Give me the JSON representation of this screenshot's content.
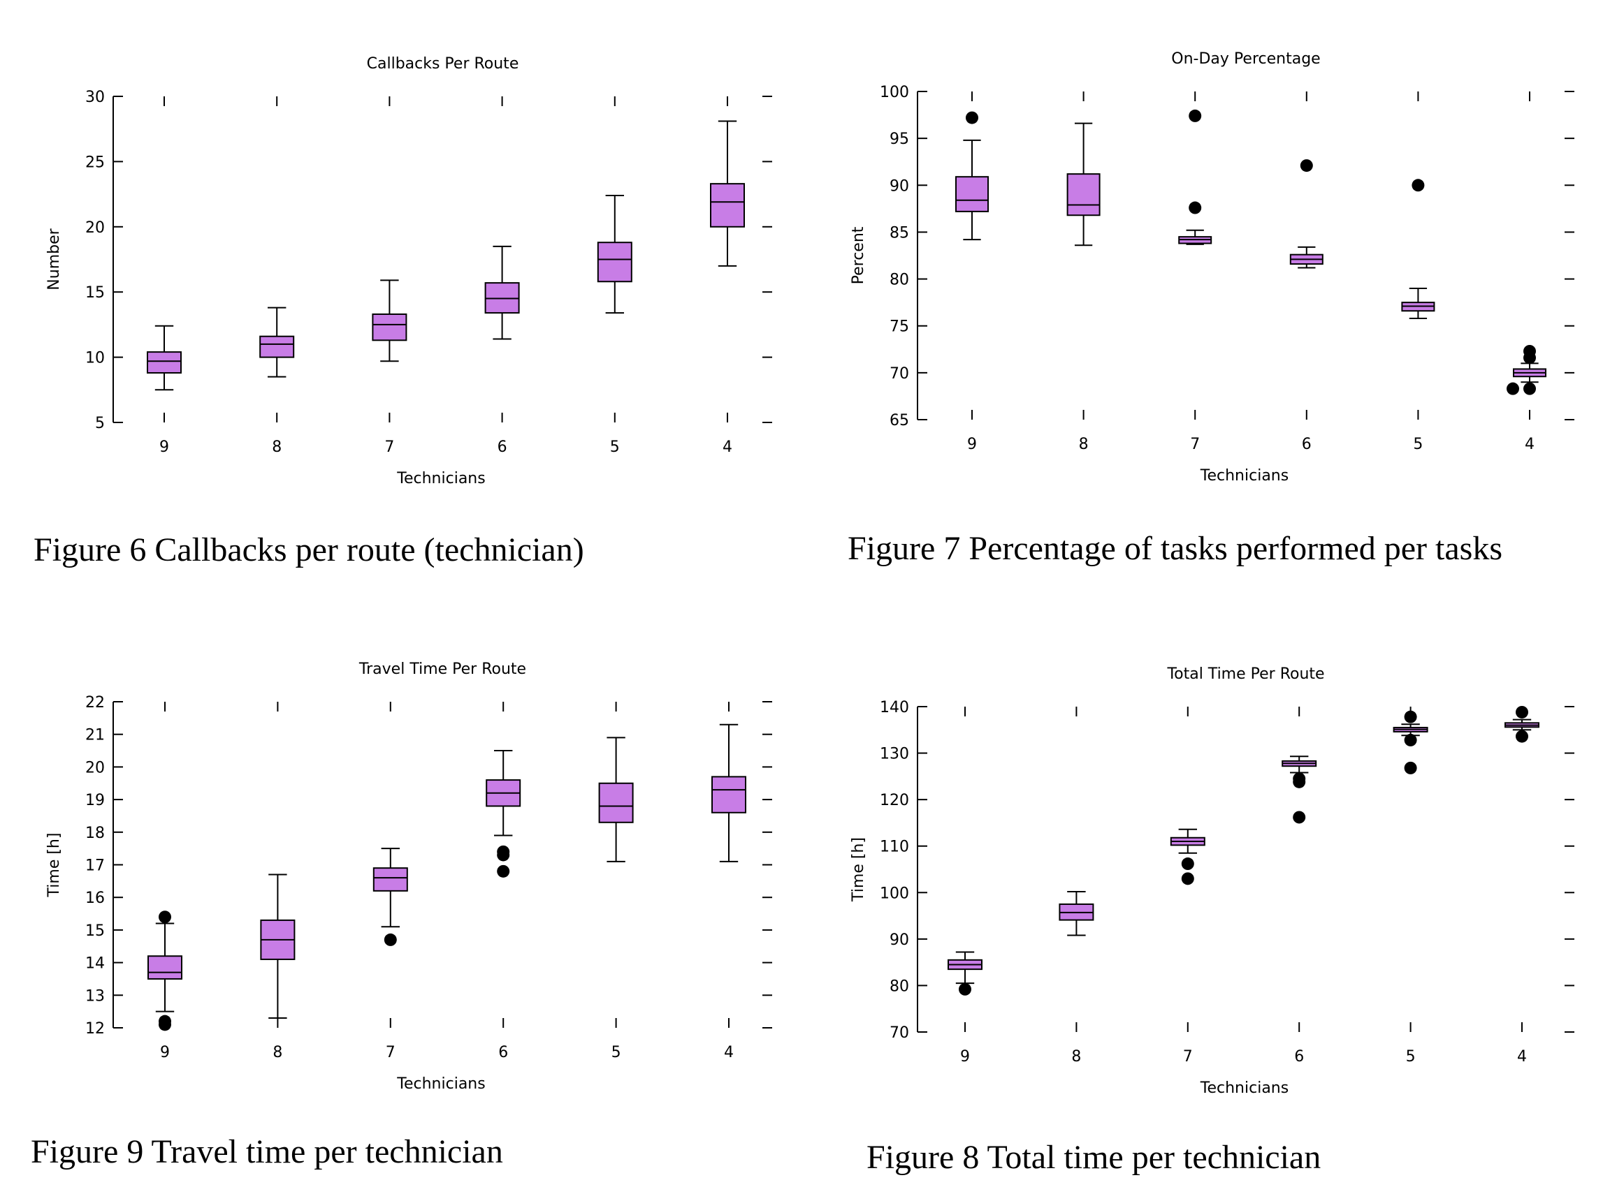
{
  "captions": {
    "fig6": "Figure 6 Callbacks per route (technician)",
    "fig7": "Figure 7 Percentage of tasks performed per tasks",
    "fig8": "Figure 8 Total time per technician",
    "fig9": "Figure 9 Travel time per technician"
  },
  "colors": {
    "box_fill": "#c87de6",
    "stroke": "#000000",
    "outlier": "#000000"
  },
  "chart_data": [
    {
      "type": "boxplot",
      "title": "Callbacks Per Route",
      "xlabel": "Technicians",
      "ylabel": "Number",
      "categories": [
        "9",
        "8",
        "7",
        "6",
        "5",
        "4"
      ],
      "ylim": [
        5,
        30
      ],
      "yticks": [
        5,
        10,
        15,
        20,
        25,
        30
      ],
      "boxes": [
        {
          "min": 7.5,
          "q1": 8.8,
          "median": 9.7,
          "q3": 10.4,
          "max": 12.4,
          "outliers": []
        },
        {
          "min": 8.5,
          "q1": 10.0,
          "median": 11.0,
          "q3": 11.6,
          "max": 13.8,
          "outliers": []
        },
        {
          "min": 9.7,
          "q1": 11.3,
          "median": 12.5,
          "q3": 13.3,
          "max": 15.9,
          "outliers": []
        },
        {
          "min": 11.4,
          "q1": 13.4,
          "median": 14.5,
          "q3": 15.7,
          "max": 18.5,
          "outliers": []
        },
        {
          "min": 13.4,
          "q1": 15.8,
          "median": 17.5,
          "q3": 18.8,
          "max": 22.4,
          "outliers": []
        },
        {
          "min": 17.0,
          "q1": 20.0,
          "median": 21.9,
          "q3": 23.3,
          "max": 28.1,
          "outliers": []
        }
      ]
    },
    {
      "type": "boxplot",
      "title": "On-Day Percentage",
      "xlabel": "Technicians",
      "ylabel": "Percent",
      "categories": [
        "9",
        "8",
        "7",
        "6",
        "5",
        "4"
      ],
      "ylim": [
        65,
        100
      ],
      "yticks": [
        65,
        70,
        75,
        80,
        85,
        90,
        95,
        100
      ],
      "boxes": [
        {
          "min": 84.2,
          "q1": 87.2,
          "median": 88.4,
          "q3": 90.9,
          "max": 94.8,
          "outliers": [
            97.2
          ]
        },
        {
          "min": 83.6,
          "q1": 86.8,
          "median": 87.9,
          "q3": 91.2,
          "max": 96.6,
          "outliers": []
        },
        {
          "min": 83.7,
          "q1": 83.8,
          "median": 84.2,
          "q3": 84.5,
          "max": 85.2,
          "outliers": [
            97.4,
            87.6
          ]
        },
        {
          "min": 81.2,
          "q1": 81.6,
          "median": 82.1,
          "q3": 82.6,
          "max": 83.4,
          "outliers": [
            92.1
          ]
        },
        {
          "min": 75.8,
          "q1": 76.6,
          "median": 77.1,
          "q3": 77.5,
          "max": 79.0,
          "outliers": [
            90.0
          ]
        },
        {
          "min": 69.0,
          "q1": 69.6,
          "median": 70.0,
          "q3": 70.4,
          "max": 71.0,
          "outliers": [
            72.3,
            71.6,
            68.3,
            68.3
          ]
        }
      ]
    },
    {
      "type": "boxplot",
      "title": "Travel Time Per Route",
      "xlabel": "Technicians",
      "ylabel": "Time [h]",
      "categories": [
        "9",
        "8",
        "7",
        "6",
        "5",
        "4"
      ],
      "ylim": [
        12,
        22
      ],
      "yticks": [
        12,
        13,
        14,
        15,
        16,
        17,
        18,
        19,
        20,
        21,
        22
      ],
      "boxes": [
        {
          "min": 12.5,
          "q1": 13.5,
          "median": 13.7,
          "q3": 14.2,
          "max": 15.2,
          "outliers": [
            15.4,
            12.2,
            12.1
          ]
        },
        {
          "min": 12.3,
          "q1": 14.1,
          "median": 14.7,
          "q3": 15.3,
          "max": 16.7,
          "outliers": []
        },
        {
          "min": 15.1,
          "q1": 16.2,
          "median": 16.6,
          "q3": 16.9,
          "max": 17.5,
          "outliers": [
            14.7
          ]
        },
        {
          "min": 17.9,
          "q1": 18.8,
          "median": 19.2,
          "q3": 19.6,
          "max": 20.5,
          "outliers": [
            17.4,
            17.3,
            16.8
          ]
        },
        {
          "min": 17.1,
          "q1": 18.3,
          "median": 18.8,
          "q3": 19.5,
          "max": 20.9,
          "outliers": []
        },
        {
          "min": 17.1,
          "q1": 18.6,
          "median": 19.3,
          "q3": 19.7,
          "max": 21.3,
          "outliers": []
        }
      ]
    },
    {
      "type": "boxplot",
      "title": "Total Time Per Route",
      "xlabel": "Technicians",
      "ylabel": "Time [h]",
      "categories": [
        "9",
        "8",
        "7",
        "6",
        "5",
        "4"
      ],
      "ylim": [
        70,
        140
      ],
      "yticks": [
        70,
        80,
        90,
        100,
        110,
        120,
        130,
        140
      ],
      "boxes": [
        {
          "min": 80.5,
          "q1": 83.5,
          "median": 84.5,
          "q3": 85.5,
          "max": 87.2,
          "outliers": [
            79.2
          ]
        },
        {
          "min": 90.8,
          "q1": 94.1,
          "median": 95.7,
          "q3": 97.5,
          "max": 100.2,
          "outliers": []
        },
        {
          "min": 108.5,
          "q1": 110.2,
          "median": 111.0,
          "q3": 111.8,
          "max": 113.6,
          "outliers": [
            106.2,
            103.0
          ]
        },
        {
          "min": 125.8,
          "q1": 127.2,
          "median": 127.8,
          "q3": 128.3,
          "max": 129.3,
          "outliers": [
            124.5,
            123.8,
            116.2
          ]
        },
        {
          "min": 133.8,
          "q1": 134.6,
          "median": 135.1,
          "q3": 135.5,
          "max": 136.2,
          "outliers": [
            137.8,
            132.8,
            126.8
          ]
        },
        {
          "min": 135.0,
          "q1": 135.6,
          "median": 136.0,
          "q3": 136.5,
          "max": 137.2,
          "outliers": [
            138.8,
            133.6
          ]
        }
      ]
    }
  ]
}
